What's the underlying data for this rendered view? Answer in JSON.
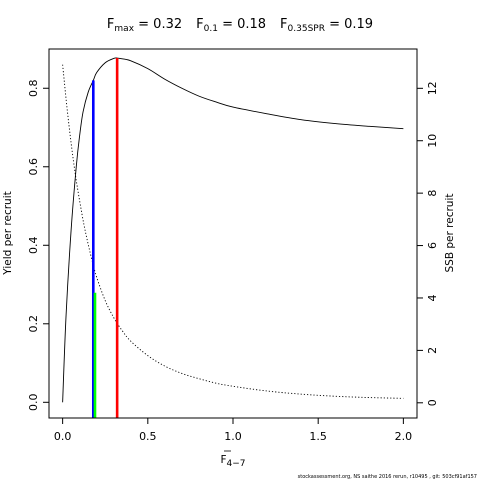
{
  "chart_data": {
    "type": "line",
    "title": {
      "fmax_symbol": "F",
      "fmax_sub": "max",
      "fmax_value": " = 0.32",
      "f01_symbol": "F",
      "f01_sub": "0.1",
      "f01_value": " = 0.18",
      "fspr_symbol": "F",
      "fspr_sub": "0.35SPR",
      "fspr_value": " = 0.19"
    },
    "xlabel": {
      "symbol": "F",
      "sub": "4−7"
    },
    "ylabel_left": "Yield per recruit",
    "ylabel_right": "SSB per recruit",
    "xlim": [
      -0.08,
      2.08
    ],
    "ylim_left": [
      -0.04,
      0.9
    ],
    "ylim_right": [
      -0.58,
      13.5
    ],
    "x_ticks": [
      0,
      0.5,
      1,
      1.5,
      2
    ],
    "x_tick_labels": [
      "0.0",
      "0.5",
      "1.0",
      "1.5",
      "2.0"
    ],
    "yl_ticks": [
      0,
      0.2,
      0.4,
      0.6,
      0.8
    ],
    "yl_tick_labels": [
      "0.0",
      "0.2",
      "0.4",
      "0.6",
      "0.8"
    ],
    "yr_ticks": [
      0,
      2,
      4,
      6,
      8,
      10,
      12
    ],
    "yr_tick_labels": [
      "0",
      "2",
      "4",
      "6",
      "8",
      "10",
      "12"
    ],
    "series": [
      {
        "axis": "left",
        "style": "solid",
        "color": "#000000",
        "x": [
          0,
          0.02,
          0.05,
          0.08,
          0.1,
          0.12,
          0.15,
          0.18,
          0.2,
          0.25,
          0.3,
          0.32,
          0.35,
          0.4,
          0.5,
          0.6,
          0.7,
          0.8,
          0.9,
          1.0,
          1.2,
          1.4,
          1.6,
          1.8,
          2.0
        ],
        "y": [
          0.0,
          0.22,
          0.44,
          0.6,
          0.68,
          0.74,
          0.79,
          0.82,
          0.84,
          0.865,
          0.876,
          0.877,
          0.875,
          0.87,
          0.85,
          0.823,
          0.8,
          0.78,
          0.765,
          0.752,
          0.735,
          0.72,
          0.71,
          0.703,
          0.697
        ]
      },
      {
        "axis": "right",
        "style": "dotted",
        "color": "#000000",
        "x": [
          0,
          0.025,
          0.05,
          0.075,
          0.1,
          0.125,
          0.15,
          0.175,
          0.2,
          0.25,
          0.3,
          0.35,
          0.4,
          0.5,
          0.6,
          0.7,
          0.8,
          0.9,
          1.0,
          1.2,
          1.4,
          1.6,
          1.8,
          2.0
        ],
        "y": [
          12.9,
          11.3,
          9.9,
          8.7,
          7.7,
          6.8,
          6.05,
          5.38,
          4.79,
          3.9,
          3.25,
          2.75,
          2.35,
          1.8,
          1.4,
          1.12,
          0.92,
          0.75,
          0.63,
          0.45,
          0.33,
          0.25,
          0.2,
          0.17
        ]
      }
    ],
    "reference_lines": [
      {
        "x": 0.18,
        "y_left_top": 0.82,
        "color": "#0000ff"
      },
      {
        "x": 0.19,
        "y_right_top": 4.2,
        "color": "#00ff00"
      },
      {
        "x": 0.32,
        "y_left_top": 0.877,
        "color": "#ff0000"
      }
    ]
  },
  "footer": "stockassessment.org, NS saithe 2016 rerun, r10495 , git: 503cf91af157"
}
